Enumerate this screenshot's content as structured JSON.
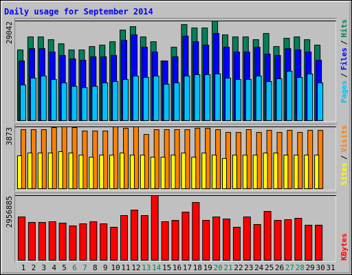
{
  "chart_data": [
    {
      "type": "bar",
      "title": "Daily usage for September 2014",
      "categories": [
        "1",
        "2",
        "3",
        "4",
        "5",
        "6",
        "7",
        "8",
        "9",
        "10",
        "11",
        "12",
        "13",
        "14",
        "15",
        "16",
        "17",
        "18",
        "19",
        "20",
        "21",
        "22",
        "23",
        "24",
        "25",
        "26",
        "27",
        "28",
        "29",
        "30",
        "31"
      ],
      "category_colors": [
        "#000000",
        "#000000",
        "#000000",
        "#000000",
        "#000000",
        "#00805c",
        "#00805c",
        "#000000",
        "#000000",
        "#000000",
        "#000000",
        "#000000",
        "#00805c",
        "#00805c",
        "#000000",
        "#000000",
        "#000000",
        "#000000",
        "#000000",
        "#00805c",
        "#00805c",
        "#000000",
        "#000000",
        "#000000",
        "#000000",
        "#000000",
        "#00805c",
        "#00805c",
        "#000000",
        "#000000",
        "#000000"
      ],
      "ylim": [
        0,
        29042
      ],
      "yticks": [
        29042
      ],
      "grid": true,
      "legend": "top",
      "legend_separator": "/",
      "series": [
        {
          "name": "Hits",
          "color": "#00805c",
          "values": [
            20600,
            24400,
            24400,
            23600,
            22400,
            20600,
            20600,
            21600,
            22000,
            23000,
            26400,
            27400,
            24400,
            23000,
            17400,
            21400,
            28000,
            27000,
            27000,
            29042,
            25000,
            24400,
            24400,
            23600,
            25400,
            21600,
            24000,
            24400,
            23600,
            22000,
            null
          ]
        },
        {
          "name": "Files",
          "color": "#0000ff",
          "values": [
            17400,
            21000,
            21000,
            20000,
            19000,
            18000,
            17600,
            18600,
            18600,
            19000,
            23400,
            25000,
            21400,
            20000,
            17400,
            18600,
            24600,
            23000,
            22000,
            25400,
            21400,
            20000,
            20000,
            21400,
            19400,
            19000,
            21000,
            20600,
            20000,
            17600,
            null
          ]
        },
        {
          "name": "Pages",
          "color": "#00c0ff",
          "values": [
            10400,
            12400,
            13000,
            12000,
            11000,
            10000,
            9600,
            10000,
            11000,
            11400,
            12000,
            13000,
            12600,
            13000,
            10600,
            11000,
            13000,
            13400,
            13400,
            13600,
            12400,
            12000,
            12000,
            13000,
            11400,
            12200,
            14400,
            12600,
            13600,
            11000,
            null
          ]
        }
      ]
    },
    {
      "type": "bar",
      "ylim": [
        0,
        3873
      ],
      "yticks": [
        3873
      ],
      "grid": true,
      "legend": "top",
      "legend_separator": "/",
      "series": [
        {
          "name": "Visits",
          "color": "#ff8000",
          "values": [
            3698,
            3698,
            3698,
            3827,
            3873,
            3827,
            3612,
            3612,
            3612,
            3873,
            3784,
            3873,
            3397,
            3698,
            3698,
            3698,
            3698,
            3784,
            3784,
            3698,
            3526,
            3526,
            3698,
            3526,
            3655,
            3526,
            3655,
            3526,
            3655,
            3655,
            null
          ]
        },
        {
          "name": "Sites",
          "color": "#ffff00",
          "values": [
            2064,
            2236,
            2236,
            2236,
            2322,
            2236,
            2107,
            1978,
            2107,
            2107,
            2236,
            2107,
            2107,
            1978,
            1978,
            2107,
            2236,
            1978,
            2236,
            2107,
            1892,
            2107,
            2107,
            2107,
            2236,
            2236,
            2107,
            2107,
            2107,
            2107,
            null
          ]
        }
      ]
    },
    {
      "type": "bar",
      "ylim": [
        0,
        2956885
      ],
      "yticks": [
        2956885
      ],
      "grid": true,
      "legend": "bottom",
      "series": [
        {
          "name": "KBytes",
          "color": "#ff0000",
          "values": [
            1981700,
            1730100,
            1730100,
            1761500,
            1698600,
            1572800,
            1667200,
            1761500,
            1667200,
            1509900,
            2044600,
            2296300,
            2044600,
            2956885,
            1761500,
            1824400,
            2201900,
            2642300,
            1824400,
            1981700,
            1887400,
            1509900,
            1981700,
            1635700,
            2233400,
            1824400,
            1855900,
            1918800,
            1604300,
            1604300,
            null
          ]
        }
      ]
    }
  ]
}
